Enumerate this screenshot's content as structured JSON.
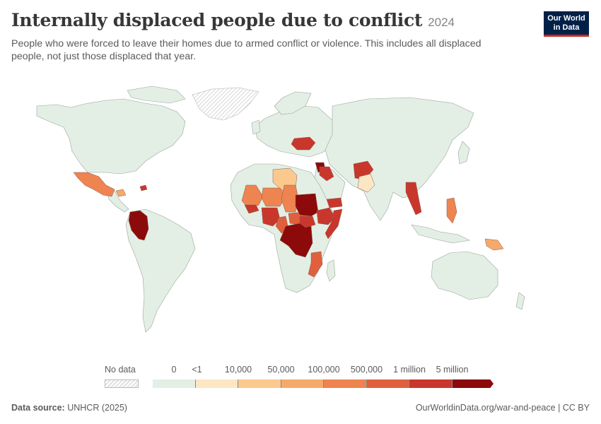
{
  "header": {
    "title": "Internally displaced people due to conflict",
    "year": "2024",
    "subtitle": "People who were forced to leave their homes due to armed conflict or violence. This includes all displaced people, not just those displaced that year.",
    "logo_line1": "Our World",
    "logo_line2": "in Data"
  },
  "legend": {
    "no_data_label": "No data",
    "bins": [
      {
        "label": "0",
        "color": "#e3efe4"
      },
      {
        "label": "<1",
        "color": "#fde6c4"
      },
      {
        "label": "10,000",
        "color": "#fbc98e"
      },
      {
        "label": "50,000",
        "color": "#f5aa6b"
      },
      {
        "label": "100,000",
        "color": "#ee8450"
      },
      {
        "label": "500,000",
        "color": "#e0603e"
      },
      {
        "label": "1 million",
        "color": "#c9372c"
      },
      {
        "label": "5 million",
        "color": "#8c0a0a"
      }
    ]
  },
  "footer": {
    "source_prefix": "Data source:",
    "source": "UNHCR (2025)",
    "url": "OurWorldinData.org/war-and-peace | CC BY"
  },
  "map": {
    "base_color": "#e3efe4",
    "border_color": "#9aa59c",
    "no_data_color": "#f2f2f2",
    "highlighted": [
      {
        "region": "Mexico",
        "level": 4
      },
      {
        "region": "Honduras",
        "level": 3
      },
      {
        "region": "Haiti",
        "level": 6
      },
      {
        "region": "Colombia",
        "level": 7
      },
      {
        "region": "Mali",
        "level": 4
      },
      {
        "region": "Libya",
        "level": 2
      },
      {
        "region": "Niger",
        "level": 4
      },
      {
        "region": "Burkina Faso",
        "level": 6
      },
      {
        "region": "Nigeria",
        "level": 6
      },
      {
        "region": "Chad",
        "level": 4
      },
      {
        "region": "Cameroon",
        "level": 5
      },
      {
        "region": "Central African Republic",
        "level": 5
      },
      {
        "region": "DR Congo",
        "level": 7
      },
      {
        "region": "Sudan",
        "level": 7
      },
      {
        "region": "South Sudan",
        "level": 6
      },
      {
        "region": "Ethiopia",
        "level": 6
      },
      {
        "region": "Somalia",
        "level": 6
      },
      {
        "region": "Yemen",
        "level": 6
      },
      {
        "region": "Mozambique",
        "level": 5
      },
      {
        "region": "Ukraine",
        "level": 6
      },
      {
        "region": "Syria",
        "level": 7
      },
      {
        "region": "Iraq",
        "level": 6
      },
      {
        "region": "Afghanistan",
        "level": 6
      },
      {
        "region": "Pakistan",
        "level": 1
      },
      {
        "region": "Myanmar",
        "level": 6
      },
      {
        "region": "Philippines",
        "level": 4
      },
      {
        "region": "Papua New Guinea",
        "level": 3
      }
    ]
  }
}
